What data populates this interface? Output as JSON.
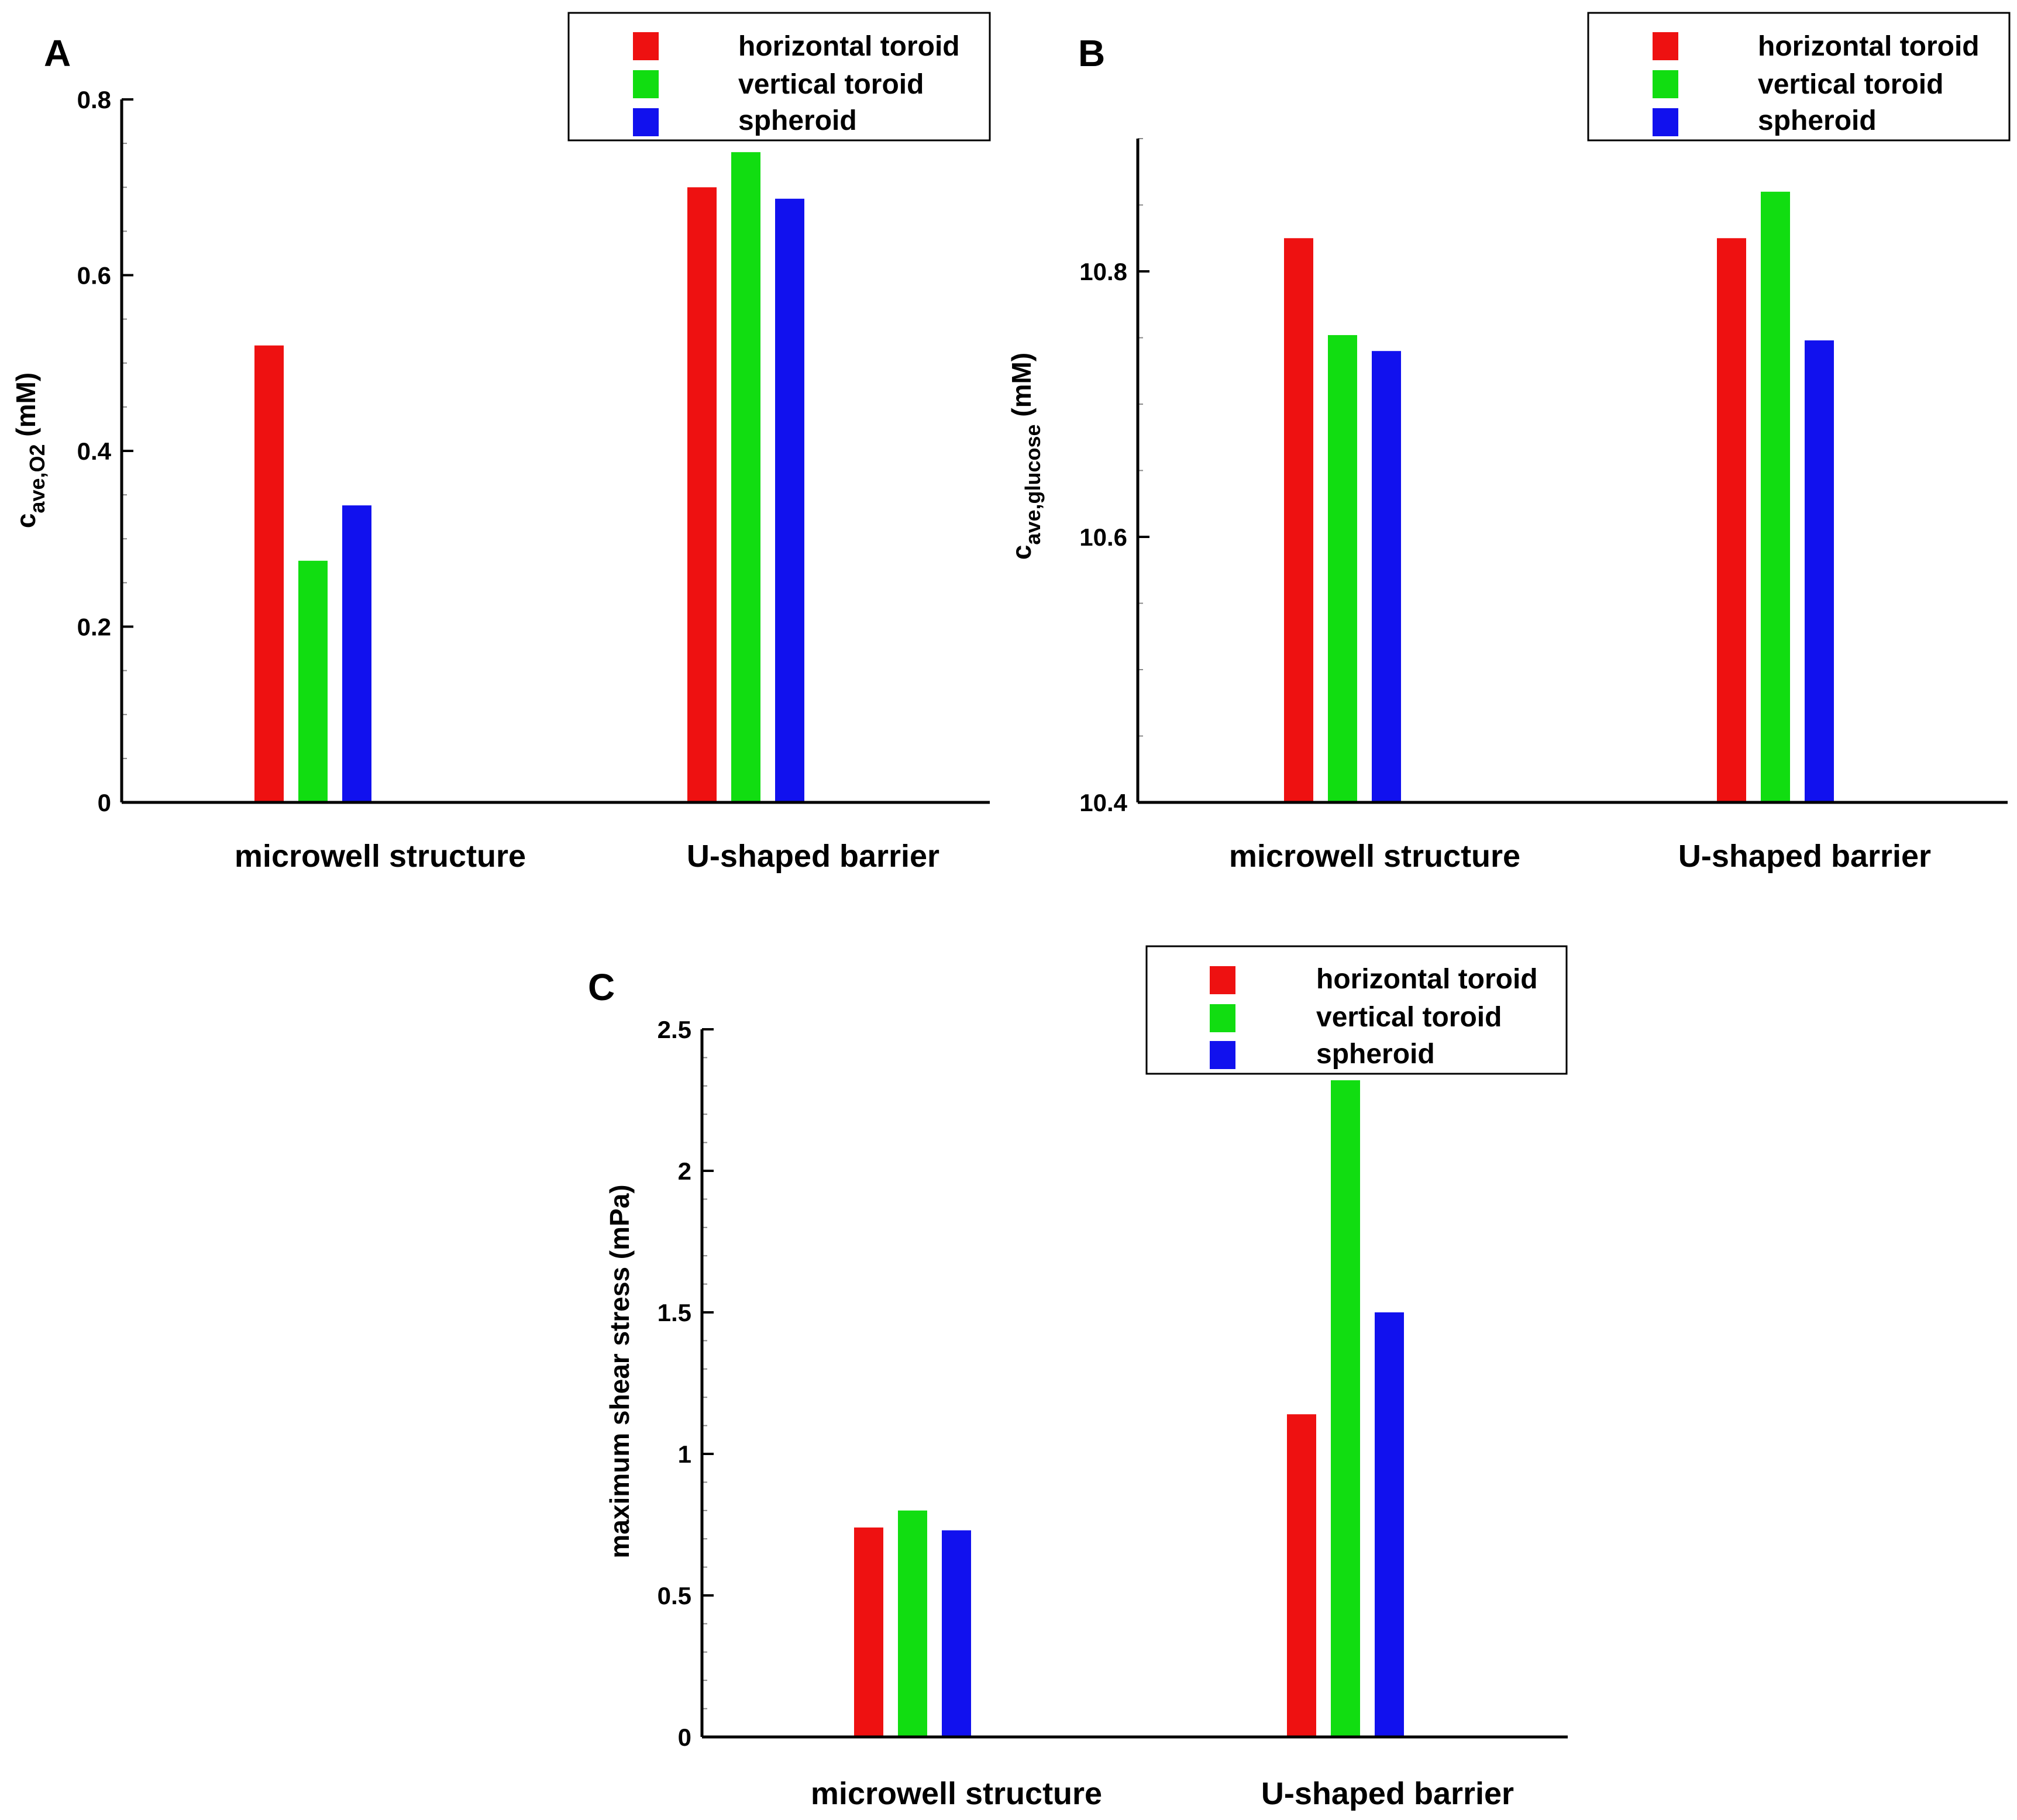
{
  "colors": {
    "horizontal": "#ee1111",
    "vertical": "#11dd11",
    "spheroid": "#1111ee",
    "axis": "#000000"
  },
  "chart_data": [
    {
      "panel": "A",
      "type": "bar",
      "ylabel_main": "c",
      "ylabel_sub": "ave,O2",
      "ylabel_unit": " (mM)",
      "ylim": [
        0,
        0.8
      ],
      "ticks": [
        0,
        0.2,
        0.4,
        0.6,
        0.8
      ],
      "tick_labels": [
        "0",
        "0.2",
        "0.4",
        "0.6",
        "0.8"
      ],
      "minor_step": 0.05,
      "categories": [
        "microwell structure",
        "U-shaped barrier"
      ],
      "legend_position": "top-right",
      "series": [
        {
          "name": "horizontal toroid",
          "color_key": "horizontal",
          "values": [
            0.52,
            0.7
          ]
        },
        {
          "name": "vertical toroid",
          "color_key": "vertical",
          "values": [
            0.275,
            0.74
          ]
        },
        {
          "name": "spheroid",
          "color_key": "spheroid",
          "values": [
            0.338,
            0.687
          ]
        }
      ]
    },
    {
      "panel": "B",
      "type": "bar",
      "ylabel_main": "c",
      "ylabel_sub": "ave,glucose",
      "ylabel_unit": " (mM)",
      "ylim": [
        10.4,
        10.9
      ],
      "ticks": [
        10.4,
        10.6,
        10.8
      ],
      "tick_labels": [
        "10.4",
        "10.6",
        "10.8"
      ],
      "minor_step": 0.05,
      "categories": [
        "microwell structure",
        "U-shaped barrier"
      ],
      "legend_position": "top-right",
      "series": [
        {
          "name": "horizontal toroid",
          "color_key": "horizontal",
          "values": [
            10.825,
            10.825
          ]
        },
        {
          "name": "vertical toroid",
          "color_key": "vertical",
          "values": [
            10.752,
            10.86
          ]
        },
        {
          "name": "spheroid",
          "color_key": "spheroid",
          "values": [
            10.74,
            10.748
          ]
        }
      ]
    },
    {
      "panel": "C",
      "type": "bar",
      "ylabel_main": "maximum shear stress (mPa)",
      "ylabel_sub": "",
      "ylabel_unit": "",
      "ylim": [
        0,
        2.5
      ],
      "ticks": [
        0,
        0.5,
        1,
        1.5,
        2,
        2.5
      ],
      "tick_labels": [
        "0",
        "0.5",
        "1",
        "1.5",
        "2",
        "2.5"
      ],
      "minor_step": 0.1,
      "categories": [
        "microwell structure",
        "U-shaped barrier"
      ],
      "legend_position": "top-right",
      "series": [
        {
          "name": "horizontal toroid",
          "color_key": "horizontal",
          "values": [
            0.74,
            1.14
          ]
        },
        {
          "name": "vertical toroid",
          "color_key": "vertical",
          "values": [
            0.8,
            2.32
          ]
        },
        {
          "name": "spheroid",
          "color_key": "spheroid",
          "values": [
            0.73,
            1.5
          ]
        }
      ]
    }
  ]
}
